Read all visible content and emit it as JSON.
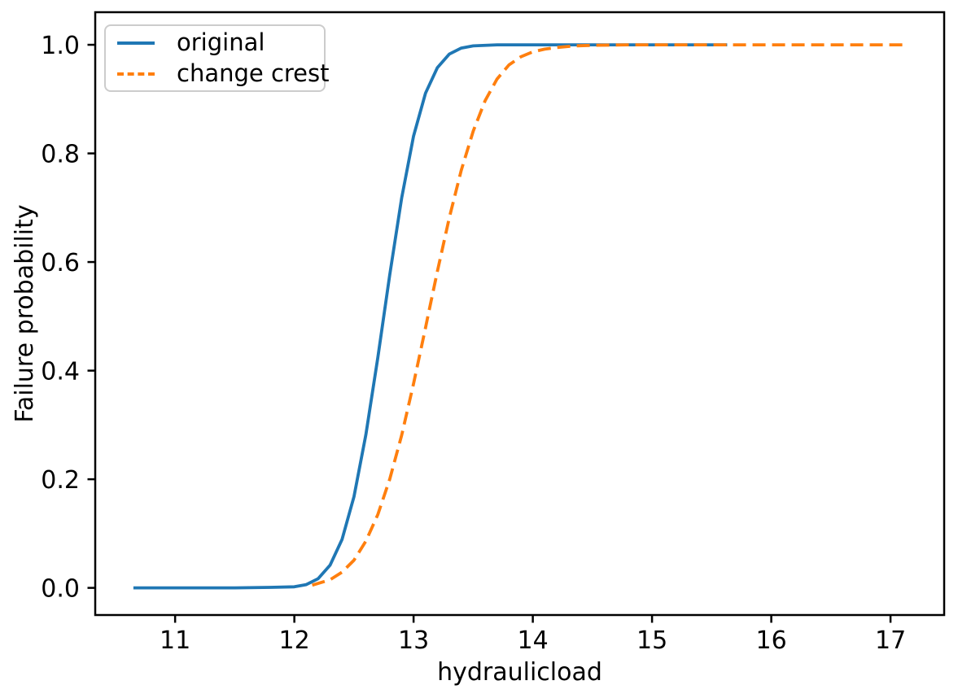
{
  "figure": {
    "background": "#ffffff",
    "text_color": "#000000",
    "spine_color": "#000000"
  },
  "chart_data": {
    "type": "line",
    "title": "",
    "xlabel": "hydraulicload",
    "ylabel": "Failure probability",
    "xlim": [
      10.33,
      17.45
    ],
    "ylim": [
      -0.05,
      1.06
    ],
    "grid": false,
    "x_ticks": {
      "values": [
        11,
        12,
        13,
        14,
        15,
        16,
        17
      ],
      "labels": [
        "11",
        "12",
        "13",
        "14",
        "15",
        "16",
        "17"
      ]
    },
    "y_ticks": {
      "values": [
        0.0,
        0.2,
        0.4,
        0.6,
        0.8,
        1.0
      ],
      "labels": [
        "0.0",
        "0.2",
        "0.4",
        "0.6",
        "0.8",
        "1.0"
      ]
    },
    "legend": {
      "position": "upper left",
      "entries": [
        {
          "label": "original",
          "color": "#1f77b4",
          "style": "solid"
        },
        {
          "label": "change crest",
          "color": "#ff7f0e",
          "style": "dashed"
        }
      ]
    },
    "series": [
      {
        "name": "original",
        "color": "#1f77b4",
        "line_style": "solid",
        "points": [
          [
            10.65,
            0.0
          ],
          [
            11.0,
            0.0
          ],
          [
            11.5,
            0.0
          ],
          [
            11.8,
            0.001
          ],
          [
            12.0,
            0.002
          ],
          [
            12.1,
            0.006
          ],
          [
            12.2,
            0.017
          ],
          [
            12.3,
            0.042
          ],
          [
            12.4,
            0.089
          ],
          [
            12.5,
            0.168
          ],
          [
            12.6,
            0.282
          ],
          [
            12.7,
            0.424
          ],
          [
            12.75,
            0.5
          ],
          [
            12.8,
            0.576
          ],
          [
            12.9,
            0.718
          ],
          [
            13.0,
            0.832
          ],
          [
            13.1,
            0.911
          ],
          [
            13.2,
            0.958
          ],
          [
            13.3,
            0.983
          ],
          [
            13.4,
            0.994
          ],
          [
            13.5,
            0.998
          ],
          [
            13.7,
            1.0
          ],
          [
            14.0,
            1.0
          ],
          [
            14.5,
            1.0
          ],
          [
            15.0,
            1.0
          ],
          [
            15.63,
            1.0
          ]
        ]
      },
      {
        "name": "change crest",
        "color": "#ff7f0e",
        "line_style": "dashed",
        "points": [
          [
            12.15,
            0.005
          ],
          [
            12.3,
            0.015
          ],
          [
            12.4,
            0.029
          ],
          [
            12.5,
            0.051
          ],
          [
            12.6,
            0.086
          ],
          [
            12.7,
            0.135
          ],
          [
            12.8,
            0.2
          ],
          [
            12.9,
            0.281
          ],
          [
            13.0,
            0.376
          ],
          [
            13.1,
            0.479
          ],
          [
            13.12,
            0.5
          ],
          [
            13.2,
            0.583
          ],
          [
            13.3,
            0.682
          ],
          [
            13.4,
            0.769
          ],
          [
            13.5,
            0.841
          ],
          [
            13.6,
            0.897
          ],
          [
            13.7,
            0.937
          ],
          [
            13.8,
            0.963
          ],
          [
            13.9,
            0.978
          ],
          [
            14.0,
            0.987
          ],
          [
            14.1,
            0.992
          ],
          [
            14.2,
            0.995
          ],
          [
            14.35,
            0.998
          ],
          [
            14.5,
            0.999
          ],
          [
            14.8,
            1.0
          ],
          [
            15.5,
            1.0
          ],
          [
            16.0,
            1.0
          ],
          [
            16.5,
            1.0
          ],
          [
            17.13,
            1.0
          ]
        ]
      }
    ]
  }
}
